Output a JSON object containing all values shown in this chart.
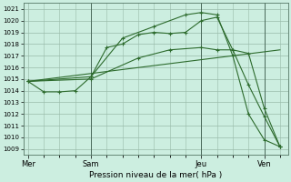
{
  "xlabel": "Pression niveau de la mer( hPa )",
  "bg_color": "#cceee0",
  "grid_color": "#99bbaa",
  "line_color": "#2d6b2d",
  "ylim": [
    1008.5,
    1021.5
  ],
  "yticks": [
    1009,
    1010,
    1011,
    1012,
    1013,
    1014,
    1015,
    1016,
    1017,
    1018,
    1019,
    1020,
    1021
  ],
  "xtick_labels": [
    "Mer",
    "Sam",
    "Jeu",
    "Ven"
  ],
  "xtick_positions": [
    0,
    4,
    11,
    15
  ],
  "vline_positions": [
    4,
    11,
    15
  ],
  "xlim": [
    -0.3,
    16.5
  ],
  "series": [
    {
      "x": [
        0,
        1,
        2,
        3,
        4,
        5,
        6,
        7,
        8,
        9,
        10,
        11,
        12,
        13,
        14,
        15,
        16
      ],
      "y": [
        1014.8,
        1013.9,
        1013.9,
        1014.0,
        1015.2,
        1017.7,
        1018.0,
        1018.8,
        1019.0,
        1018.9,
        1019.0,
        1020.0,
        1020.3,
        1017.5,
        1014.5,
        1011.8,
        1009.2
      ],
      "marker": "+"
    },
    {
      "x": [
        0,
        4,
        6,
        8,
        10,
        11,
        12,
        13,
        14,
        15,
        16
      ],
      "y": [
        1014.8,
        1015.2,
        1018.5,
        1019.5,
        1020.5,
        1020.7,
        1020.5,
        1017.0,
        1012.0,
        1009.8,
        1009.2
      ],
      "marker": "+"
    },
    {
      "x": [
        0,
        4,
        7,
        9,
        11,
        12,
        13,
        14,
        15,
        16
      ],
      "y": [
        1014.8,
        1015.0,
        1016.8,
        1017.5,
        1017.7,
        1017.5,
        1017.5,
        1017.2,
        1012.5,
        1009.2
      ],
      "marker": "+"
    },
    {
      "x": [
        0,
        16
      ],
      "y": [
        1014.8,
        1017.5
      ],
      "marker": null
    }
  ]
}
